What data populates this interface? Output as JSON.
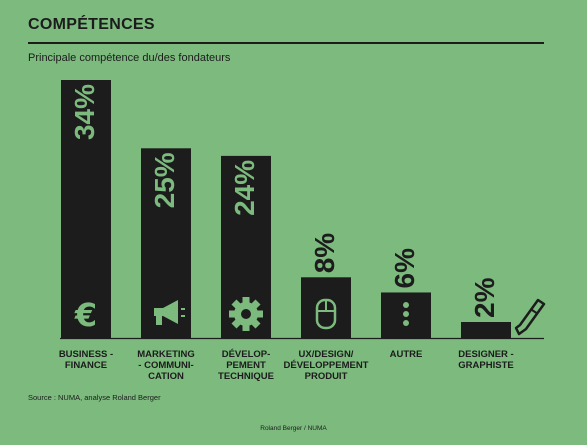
{
  "header": {
    "title": "COMPÉTENCES",
    "subtitle": "Principale compétence du/des fondateurs"
  },
  "chart_data": {
    "type": "bar",
    "title": "COMPÉTENCES",
    "subtitle": "Principale compétence du/des fondateurs",
    "categories": [
      [
        "BUSINESS -",
        "FINANCE"
      ],
      [
        "MARKETING",
        "- COMMUNI-",
        "CATION"
      ],
      [
        "DÉVELOP-",
        "PEMENT",
        "TECHNIQUE"
      ],
      [
        "UX/DESIGN/",
        "DÉVELOPPEMENT",
        "PRODUIT"
      ],
      [
        "AUTRE"
      ],
      [
        "DESIGNER -",
        "GRAPHISTE"
      ]
    ],
    "values": [
      34,
      25,
      24,
      8,
      6,
      2
    ],
    "value_labels": [
      "34%",
      "25%",
      "24%",
      "8%",
      "6%",
      "2%"
    ],
    "icons": [
      "euro-icon",
      "megaphone-icon",
      "gear-icon",
      "mouse-icon",
      "dots-icon",
      "pencil-icon"
    ],
    "ylim": [
      0,
      34
    ],
    "grid": false,
    "legend": "none"
  },
  "colors": {
    "background": "#7cba7e",
    "bar": "#1c1c1c",
    "value_label": "#1c1c1c",
    "icon": "#7cba7e",
    "text": "#1c1c1c"
  },
  "footer": {
    "source": "Source : NUMA, analyse Roland Berger",
    "credit": "Roland Berger / NUMA"
  }
}
